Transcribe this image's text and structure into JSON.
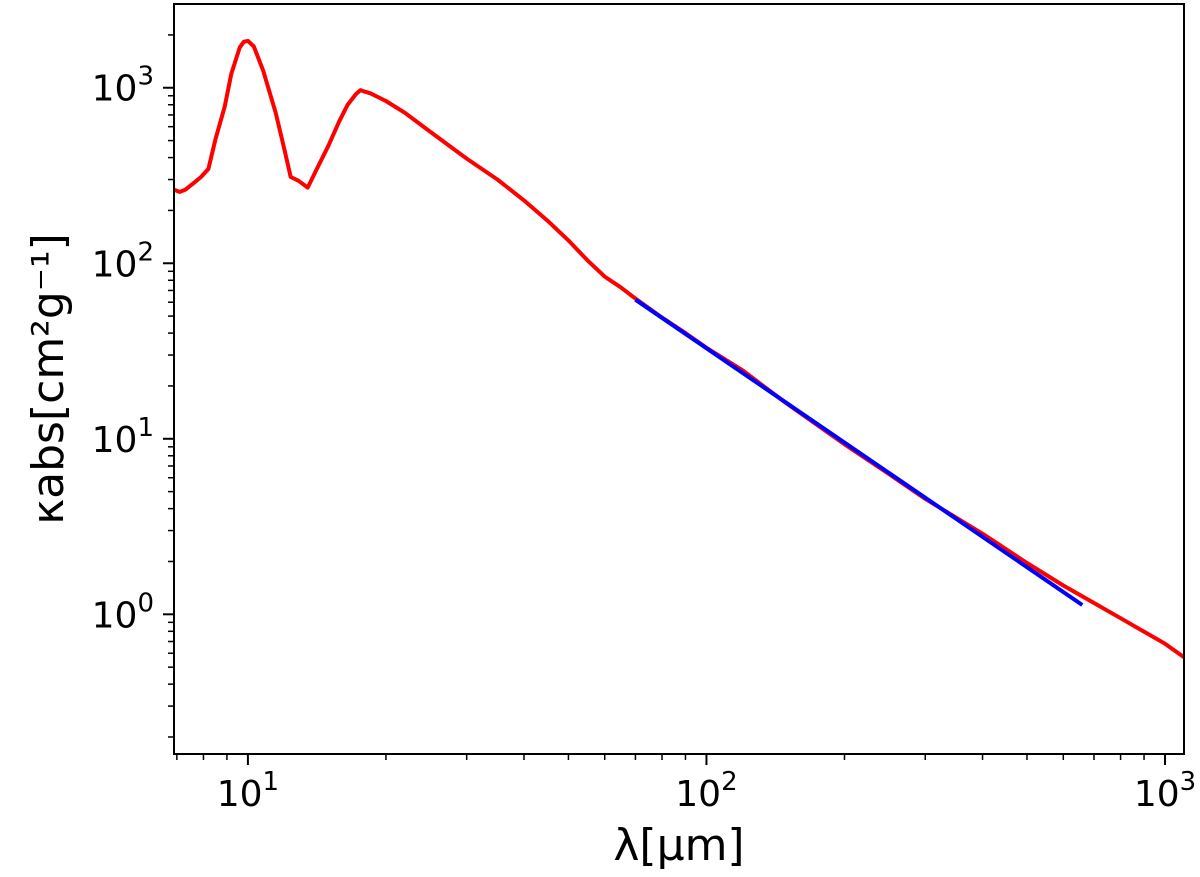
{
  "chart_data": {
    "type": "line",
    "title": "",
    "xlabel": "λ[μm]",
    "ylabel": "κabs[cm²g⁻¹]",
    "xscale": "log",
    "yscale": "log",
    "xlim": [
      6.9,
      1100
    ],
    "ylim": [
      0.16,
      3000
    ],
    "grid": false,
    "legend": "none",
    "x_ticks": [
      {
        "value": 10,
        "base": "10",
        "exp": "1"
      },
      {
        "value": 100,
        "base": "10",
        "exp": "2"
      },
      {
        "value": 1000,
        "base": "10",
        "exp": "3"
      }
    ],
    "y_ticks": [
      {
        "value": 1,
        "base": "10",
        "exp": "0"
      },
      {
        "value": 10,
        "base": "10",
        "exp": "1"
      },
      {
        "value": 100,
        "base": "10",
        "exp": "2"
      },
      {
        "value": 1000,
        "base": "10",
        "exp": "3"
      }
    ],
    "series": [
      {
        "color": "#ff0000",
        "x": [
          6.9,
          7.1,
          7.3,
          7.6,
          7.9,
          8.2,
          8.5,
          8.9,
          9.2,
          9.6,
          9.8,
          10.0,
          10.3,
          10.8,
          11.5,
          12.0,
          12.4,
          12.9,
          13.5,
          14.1,
          15.0,
          15.8,
          16.5,
          17.2,
          17.6,
          18.0,
          18.5,
          20.0,
          22,
          25,
          30,
          35,
          40,
          45,
          50,
          55,
          60,
          65,
          70,
          80,
          90,
          100,
          120,
          150,
          200,
          250,
          300,
          400,
          500,
          600,
          700,
          800,
          1000,
          1100
        ],
        "y": [
          262,
          255,
          262,
          285,
          310,
          345,
          510,
          780,
          1200,
          1700,
          1830,
          1850,
          1720,
          1250,
          720,
          450,
          310,
          295,
          270,
          340,
          470,
          640,
          800,
          920,
          970,
          950,
          930,
          840,
          720,
          560,
          395,
          300,
          228,
          175,
          135,
          104,
          84,
          73,
          63,
          49,
          40,
          33,
          24.5,
          15.8,
          9.3,
          6.3,
          4.55,
          2.88,
          1.96,
          1.46,
          1.16,
          0.95,
          0.68,
          0.57
        ]
      },
      {
        "color": "#0000ff",
        "x": [
          70,
          660
        ],
        "y": [
          62,
          1.13
        ]
      }
    ]
  }
}
